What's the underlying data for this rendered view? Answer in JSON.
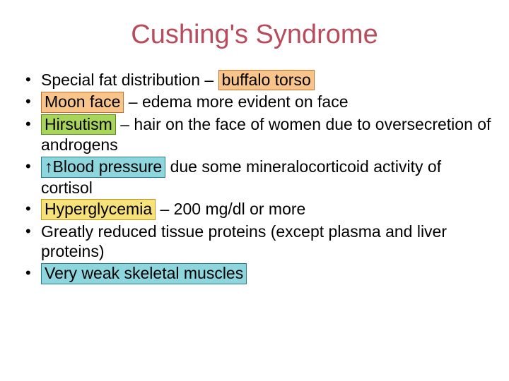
{
  "title": "Cushing's Syndrome",
  "title_color": "#b84c5c",
  "text_color": "#000000",
  "highlights": {
    "orange": {
      "bg": "#f9c48a",
      "border": "#c07028"
    },
    "green": {
      "bg": "#a8d45a",
      "border": "#5a8a20"
    },
    "blue": {
      "bg": "#8ed6de",
      "border": "#2a7a8a"
    },
    "yellow": {
      "bg": "#f7e27a",
      "border": "#b89a28"
    }
  },
  "bullets": [
    {
      "pre": "Special fat distribution – ",
      "hl": "buffalo torso",
      "hl_key": "orange",
      "post": ""
    },
    {
      "pre": "",
      "hl": "Moon face",
      "hl_key": "orange",
      "post": " – edema  more evident on face"
    },
    {
      "pre": "",
      "hl": "Hirsutism",
      "hl_key": "green",
      "post": " – hair on the face of women due to oversecretion of androgens"
    },
    {
      "pre": "",
      "hl": "↑Blood pressure",
      "hl_key": "blue",
      "post": " due some mineralocorticoid activity of cortisol"
    },
    {
      "pre": "",
      "hl": "Hyperglycemia",
      "hl_key": "yellow",
      "post": " – 200 mg/dl or more"
    },
    {
      "pre": "Greatly reduced tissue proteins (except plasma and liver proteins)",
      "hl": "",
      "hl_key": "",
      "post": ""
    },
    {
      "pre": "",
      "hl": "Very weak skeletal muscles",
      "hl_key": "blue",
      "post": ""
    }
  ]
}
